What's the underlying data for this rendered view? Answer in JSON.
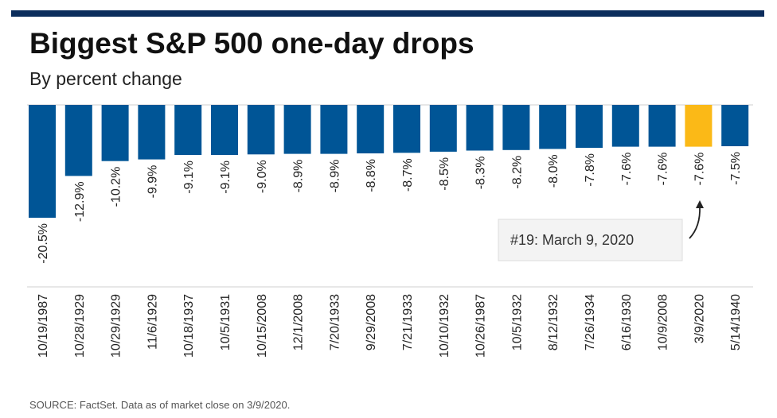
{
  "header": {
    "title": "Biggest S&P 500 one-day drops",
    "subtitle": "By percent change"
  },
  "footer": {
    "source": "SOURCE: FactSet. Data as of market close on 3/9/2020."
  },
  "colors": {
    "bar": "#005596",
    "highlight": "#fbb917",
    "top_bar": "#0b2d5c"
  },
  "chart_data": {
    "type": "bar",
    "orientation": "vertical-negative",
    "categories": [
      "10/19/1987",
      "10/28/1929",
      "10/29/1929",
      "11/6/1929",
      "10/18/1937",
      "10/5/1931",
      "10/15/2008",
      "12/1/2008",
      "7/20/1933",
      "9/29/2008",
      "7/21/1933",
      "10/10/1932",
      "10/26/1987",
      "10/5/1932",
      "8/12/1932",
      "7/26/1934",
      "6/16/1930",
      "10/9/2008",
      "3/9/2020",
      "5/14/1940"
    ],
    "values": [
      -20.5,
      -12.9,
      -10.2,
      -9.9,
      -9.1,
      -9.1,
      -9.0,
      -8.9,
      -8.9,
      -8.8,
      -8.7,
      -8.5,
      -8.3,
      -8.2,
      -8.0,
      -7.8,
      -7.6,
      -7.6,
      -7.6,
      -7.5
    ],
    "labels": [
      "-20.5%",
      "-12.9%",
      "-10.2%",
      "-9.9%",
      "-9.1%",
      "-9.1%",
      "-9.0%",
      "-8.9%",
      "-8.9%",
      "-8.8%",
      "-8.7%",
      "-8.5%",
      "-8.3%",
      "-8.2%",
      "-8.0%",
      "-7.8%",
      "-7.6%",
      "-7.6%",
      "-7.6%",
      "-7.5%"
    ],
    "highlight_index": 18,
    "annotation": "#19: March 9, 2020",
    "ylim": [
      -20.5,
      0
    ],
    "xlabel": "",
    "ylabel": "",
    "grid": false,
    "legend": "none"
  }
}
